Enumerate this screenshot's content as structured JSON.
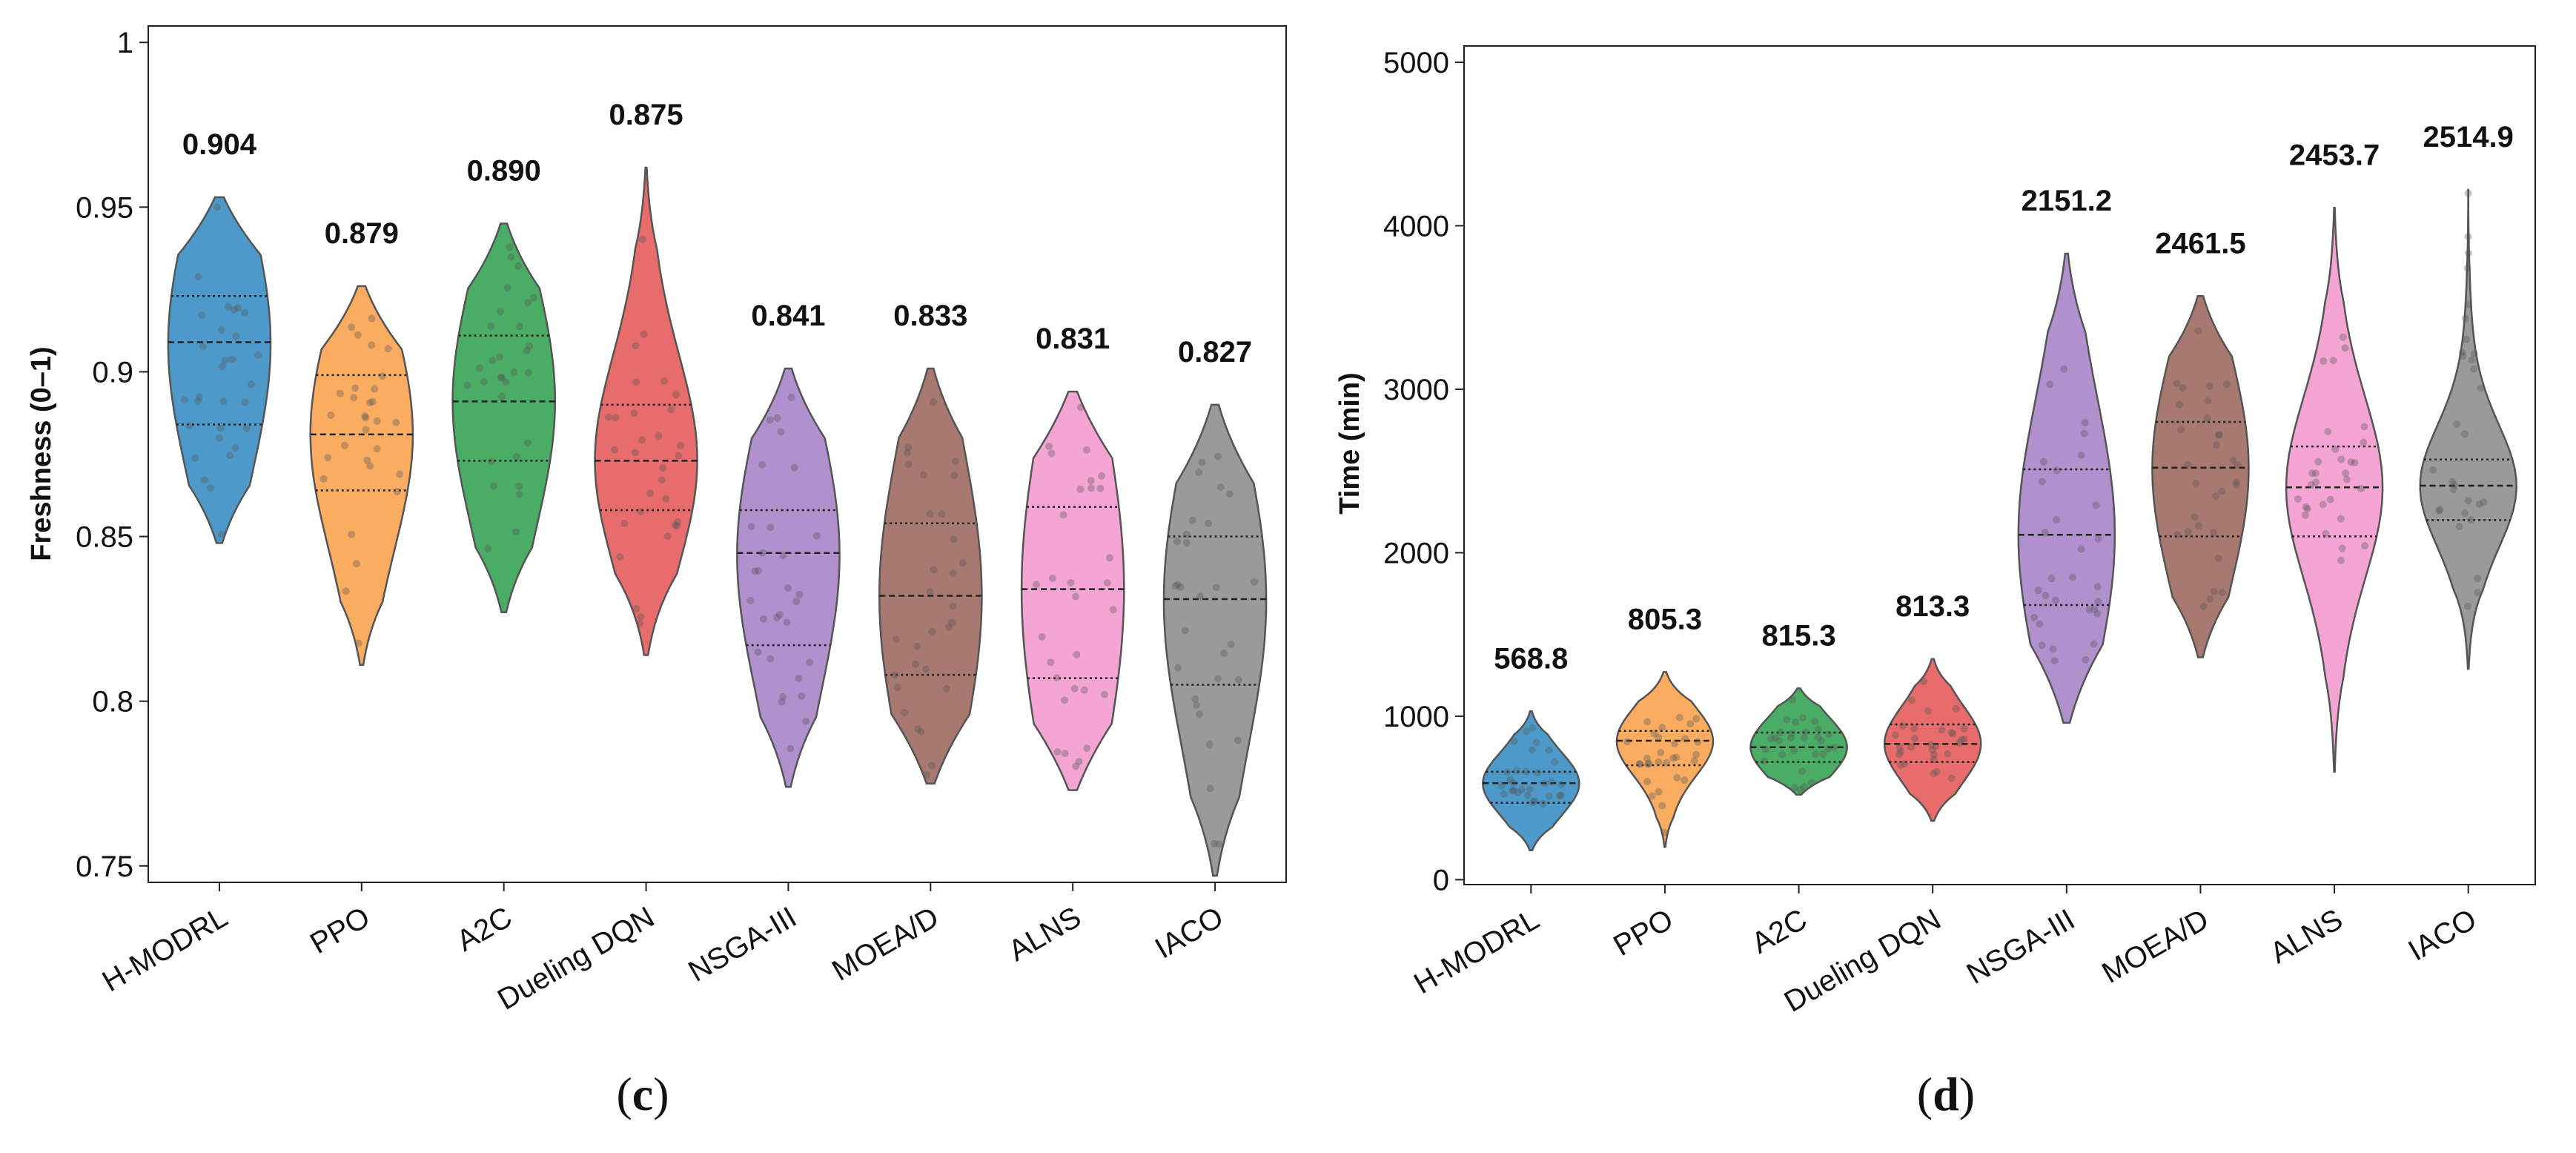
{
  "chart_data": [
    {
      "type": "violin",
      "panel_label": "(c)",
      "ylabel": "Freshness (0–1)",
      "ylim": [
        0.745,
        1.005
      ],
      "yticks": [
        0.75,
        0.8,
        0.85,
        0.9,
        0.95,
        1
      ],
      "ytick_labels": [
        "0.75",
        "0.8",
        "0.85",
        "0.9",
        "0.95",
        "1"
      ],
      "categories": [
        "H-MODRL",
        "PPO",
        "A2C",
        "Dueling DQN",
        "NSGA-III",
        "MOEA/D",
        "ALNS",
        "IACO"
      ],
      "colors": [
        "#3a8fc4",
        "#f9a350",
        "#36a455",
        "#e65c5c",
        "#a884c9",
        "#9e6a60",
        "#f39bcf",
        "#8f8f8f"
      ],
      "mean_labels": [
        "0.904",
        "0.879",
        "0.890",
        "0.875",
        "0.841",
        "0.833",
        "0.831",
        "0.827"
      ],
      "mean_values": [
        0.904,
        0.879,
        0.89,
        0.875,
        0.841,
        0.833,
        0.831,
        0.827
      ],
      "min": [
        0.848,
        0.811,
        0.827,
        0.814,
        0.774,
        0.775,
        0.773,
        0.747
      ],
      "q1": [
        0.884,
        0.864,
        0.873,
        0.858,
        0.817,
        0.808,
        0.807,
        0.805
      ],
      "median": [
        0.909,
        0.881,
        0.891,
        0.873,
        0.845,
        0.832,
        0.834,
        0.831
      ],
      "q3": [
        0.923,
        0.899,
        0.911,
        0.89,
        0.858,
        0.854,
        0.859,
        0.85
      ],
      "max": [
        0.953,
        0.926,
        0.945,
        0.962,
        0.901,
        0.901,
        0.894,
        0.89
      ],
      "grid": false,
      "legend": "none"
    },
    {
      "type": "violin",
      "panel_label": "(d)",
      "ylabel": "Time (min)",
      "ylim": [
        -30,
        5100
      ],
      "yticks": [
        0,
        1000,
        2000,
        3000,
        4000,
        5000
      ],
      "ytick_labels": [
        "0",
        "1000",
        "2000",
        "3000",
        "4000",
        "5000"
      ],
      "categories": [
        "H-MODRL",
        "PPO",
        "A2C",
        "Dueling DQN",
        "NSGA-III",
        "MOEA/D",
        "ALNS",
        "IACO"
      ],
      "colors": [
        "#3a8fc4",
        "#f9a350",
        "#36a455",
        "#e65c5c",
        "#a884c9",
        "#9e6a60",
        "#f39bcf",
        "#8f8f8f"
      ],
      "mean_labels": [
        "568.8",
        "805.3",
        "815.3",
        "813.3",
        "2151.2",
        "2461.5",
        "2453.7",
        "2514.9"
      ],
      "mean_values": [
        568.8,
        805.3,
        815.3,
        813.3,
        2151.2,
        2461.5,
        2453.7,
        2514.9
      ],
      "min": [
        180,
        200,
        520,
        360,
        960,
        1360,
        660,
        1290
      ],
      "q1": [
        470,
        700,
        720,
        720,
        1680,
        2100,
        2100,
        2200
      ],
      "median": [
        590,
        850,
        810,
        830,
        2110,
        2520,
        2400,
        2410
      ],
      "q3": [
        660,
        910,
        900,
        950,
        2510,
        2800,
        2650,
        2570
      ],
      "max": [
        1030,
        1270,
        1170,
        1350,
        3830,
        3570,
        4110,
        4220
      ],
      "grid": false,
      "legend": "none"
    }
  ]
}
